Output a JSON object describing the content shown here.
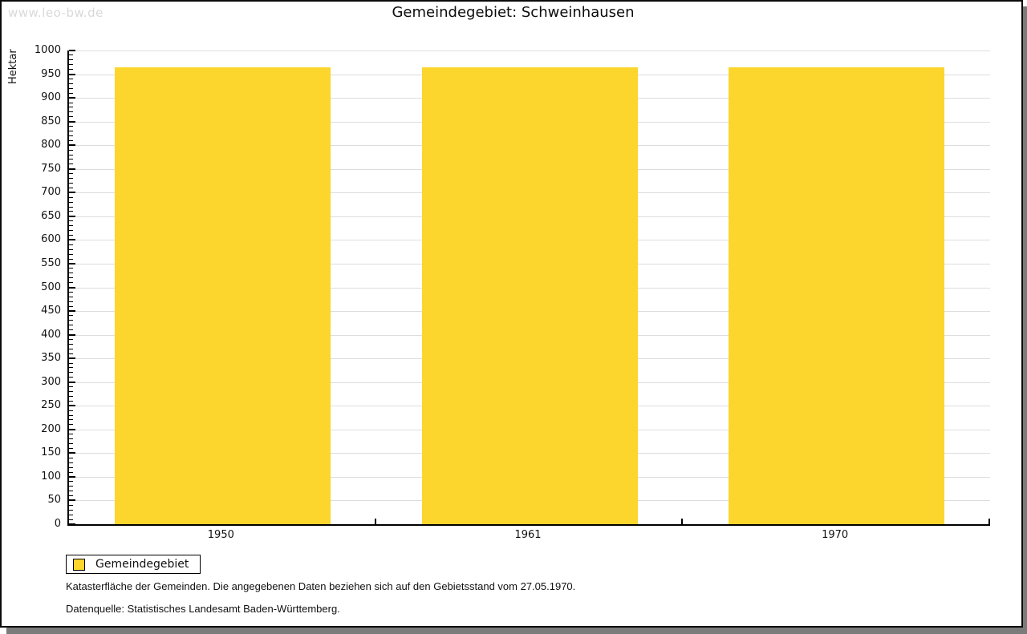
{
  "watermark": "www.leo-bw.de",
  "title": "Gemeindegebiet: Schweinhausen",
  "chart_data": {
    "type": "bar",
    "title": "Gemeindegebiet: Schweinhausen",
    "categories": [
      "1950",
      "1961",
      "1970"
    ],
    "series": [
      {
        "name": "Gemeindegebiet",
        "values": [
          964,
          964,
          964
        ]
      }
    ],
    "xlabel": "",
    "ylabel": "Hektar",
    "ylim": [
      0,
      1000
    ],
    "ytick_step": 50,
    "minor_tick_step": 10,
    "grid": true,
    "bar_color": "#fcd52d",
    "gridline_color": "#dddddd",
    "legend_position": "bottom-left"
  },
  "legend": {
    "items": [
      {
        "label": "Gemeindegebiet",
        "color": "#fcd52d"
      }
    ]
  },
  "footnotes": [
    "Katasterfläche der Gemeinden. Die angegebenen Daten beziehen sich auf den Gebietsstand vom 27.05.1970.",
    "Datenquelle: Statistisches Landesamt Baden-Württemberg."
  ],
  "colors": {
    "frame_border": "#0b0b0b",
    "shadow": "#7b7b7b",
    "watermark": "#d9d9d9",
    "axis": "#000000"
  }
}
